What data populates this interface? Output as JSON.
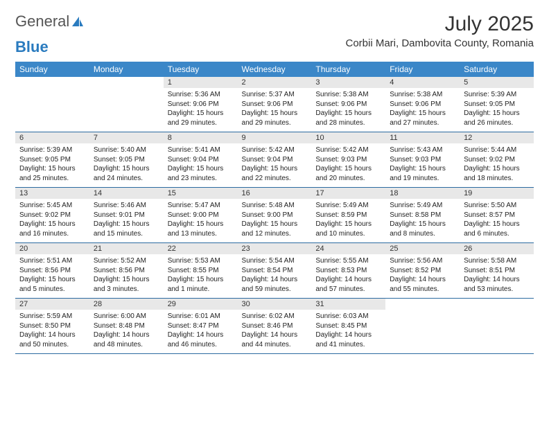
{
  "brand": {
    "part1": "General",
    "part2": "Blue"
  },
  "title": {
    "month": "July 2025",
    "location": "Corbii Mari, Dambovita County, Romania"
  },
  "colors": {
    "header_bg": "#3b87c8",
    "header_text": "#ffffff",
    "daynum_bg": "#e8e8e8",
    "border": "#2a6aa0",
    "text": "#222222"
  },
  "weekdays": [
    "Sunday",
    "Monday",
    "Tuesday",
    "Wednesday",
    "Thursday",
    "Friday",
    "Saturday"
  ],
  "first_weekday_index": 2,
  "days": [
    {
      "n": 1,
      "sunrise": "5:36 AM",
      "sunset": "9:06 PM",
      "daylight": "15 hours and 29 minutes."
    },
    {
      "n": 2,
      "sunrise": "5:37 AM",
      "sunset": "9:06 PM",
      "daylight": "15 hours and 29 minutes."
    },
    {
      "n": 3,
      "sunrise": "5:38 AM",
      "sunset": "9:06 PM",
      "daylight": "15 hours and 28 minutes."
    },
    {
      "n": 4,
      "sunrise": "5:38 AM",
      "sunset": "9:06 PM",
      "daylight": "15 hours and 27 minutes."
    },
    {
      "n": 5,
      "sunrise": "5:39 AM",
      "sunset": "9:05 PM",
      "daylight": "15 hours and 26 minutes."
    },
    {
      "n": 6,
      "sunrise": "5:39 AM",
      "sunset": "9:05 PM",
      "daylight": "15 hours and 25 minutes."
    },
    {
      "n": 7,
      "sunrise": "5:40 AM",
      "sunset": "9:05 PM",
      "daylight": "15 hours and 24 minutes."
    },
    {
      "n": 8,
      "sunrise": "5:41 AM",
      "sunset": "9:04 PM",
      "daylight": "15 hours and 23 minutes."
    },
    {
      "n": 9,
      "sunrise": "5:42 AM",
      "sunset": "9:04 PM",
      "daylight": "15 hours and 22 minutes."
    },
    {
      "n": 10,
      "sunrise": "5:42 AM",
      "sunset": "9:03 PM",
      "daylight": "15 hours and 20 minutes."
    },
    {
      "n": 11,
      "sunrise": "5:43 AM",
      "sunset": "9:03 PM",
      "daylight": "15 hours and 19 minutes."
    },
    {
      "n": 12,
      "sunrise": "5:44 AM",
      "sunset": "9:02 PM",
      "daylight": "15 hours and 18 minutes."
    },
    {
      "n": 13,
      "sunrise": "5:45 AM",
      "sunset": "9:02 PM",
      "daylight": "15 hours and 16 minutes."
    },
    {
      "n": 14,
      "sunrise": "5:46 AM",
      "sunset": "9:01 PM",
      "daylight": "15 hours and 15 minutes."
    },
    {
      "n": 15,
      "sunrise": "5:47 AM",
      "sunset": "9:00 PM",
      "daylight": "15 hours and 13 minutes."
    },
    {
      "n": 16,
      "sunrise": "5:48 AM",
      "sunset": "9:00 PM",
      "daylight": "15 hours and 12 minutes."
    },
    {
      "n": 17,
      "sunrise": "5:49 AM",
      "sunset": "8:59 PM",
      "daylight": "15 hours and 10 minutes."
    },
    {
      "n": 18,
      "sunrise": "5:49 AM",
      "sunset": "8:58 PM",
      "daylight": "15 hours and 8 minutes."
    },
    {
      "n": 19,
      "sunrise": "5:50 AM",
      "sunset": "8:57 PM",
      "daylight": "15 hours and 6 minutes."
    },
    {
      "n": 20,
      "sunrise": "5:51 AM",
      "sunset": "8:56 PM",
      "daylight": "15 hours and 5 minutes."
    },
    {
      "n": 21,
      "sunrise": "5:52 AM",
      "sunset": "8:56 PM",
      "daylight": "15 hours and 3 minutes."
    },
    {
      "n": 22,
      "sunrise": "5:53 AM",
      "sunset": "8:55 PM",
      "daylight": "15 hours and 1 minute."
    },
    {
      "n": 23,
      "sunrise": "5:54 AM",
      "sunset": "8:54 PM",
      "daylight": "14 hours and 59 minutes."
    },
    {
      "n": 24,
      "sunrise": "5:55 AM",
      "sunset": "8:53 PM",
      "daylight": "14 hours and 57 minutes."
    },
    {
      "n": 25,
      "sunrise": "5:56 AM",
      "sunset": "8:52 PM",
      "daylight": "14 hours and 55 minutes."
    },
    {
      "n": 26,
      "sunrise": "5:58 AM",
      "sunset": "8:51 PM",
      "daylight": "14 hours and 53 minutes."
    },
    {
      "n": 27,
      "sunrise": "5:59 AM",
      "sunset": "8:50 PM",
      "daylight": "14 hours and 50 minutes."
    },
    {
      "n": 28,
      "sunrise": "6:00 AM",
      "sunset": "8:48 PM",
      "daylight": "14 hours and 48 minutes."
    },
    {
      "n": 29,
      "sunrise": "6:01 AM",
      "sunset": "8:47 PM",
      "daylight": "14 hours and 46 minutes."
    },
    {
      "n": 30,
      "sunrise": "6:02 AM",
      "sunset": "8:46 PM",
      "daylight": "14 hours and 44 minutes."
    },
    {
      "n": 31,
      "sunrise": "6:03 AM",
      "sunset": "8:45 PM",
      "daylight": "14 hours and 41 minutes."
    }
  ],
  "labels": {
    "sunrise": "Sunrise:",
    "sunset": "Sunset:",
    "daylight": "Daylight:"
  }
}
